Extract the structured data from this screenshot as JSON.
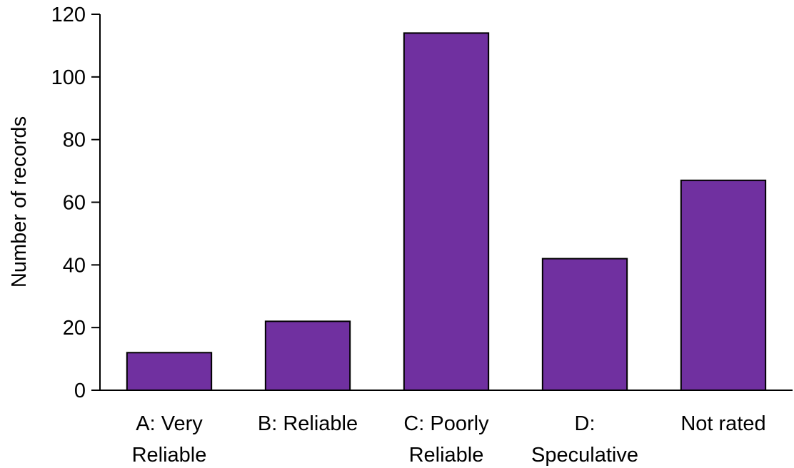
{
  "chart_data": {
    "type": "bar",
    "categories": [
      [
        "A: Very",
        "Reliable"
      ],
      [
        "B: Reliable"
      ],
      [
        "C: Poorly",
        "Reliable"
      ],
      [
        "D:",
        "Speculative"
      ],
      [
        "Not rated"
      ]
    ],
    "values": [
      12,
      22,
      114,
      42,
      67
    ],
    "ylabel": "Number of records",
    "xlabel": "",
    "ylim": [
      0,
      120
    ],
    "yticks": [
      0,
      20,
      40,
      60,
      80,
      100,
      120
    ],
    "bar_color": "#7030a0",
    "grid": false,
    "legend": "none"
  }
}
